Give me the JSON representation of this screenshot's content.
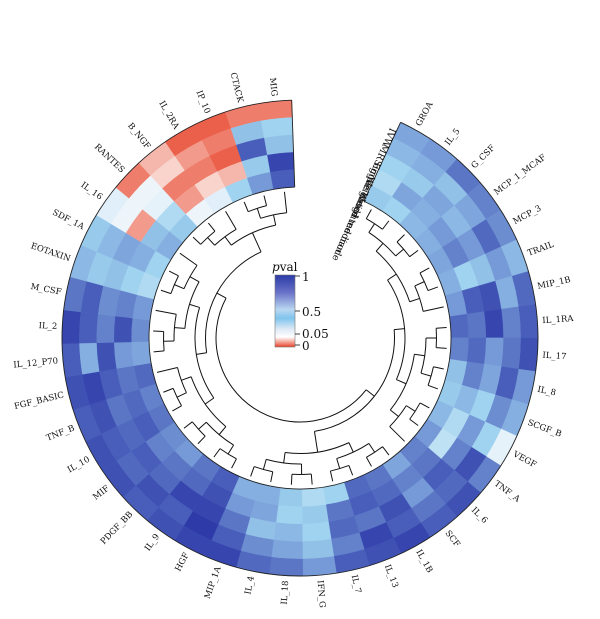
{
  "chart_data": {
    "type": "heatmap",
    "layout": "circular",
    "legend": {
      "title_prefix": "p",
      "title_suffix": "val",
      "ticks": [
        "1",
        "0.5",
        "0.05",
        "0"
      ]
    },
    "methods": [
      "IVW",
      "MR Egger",
      "Simple mode",
      "Weighted median",
      "Weighted mode"
    ],
    "cytokines": [
      "GROA",
      "IL_5",
      "G_CSF",
      "MCP_1_MCAF",
      "MCP_3",
      "TRAIL",
      "MIP_1B",
      "IL_1RA",
      "IL_17",
      "IL_8",
      "SCGF_B",
      "VEGF",
      "TNF_A",
      "IL_6",
      "SCF",
      "IL_1B",
      "IL_13",
      "IL_7",
      "IFN_G",
      "IL_18",
      "IL_4",
      "MIP_1A",
      "HGF",
      "IL_9",
      "PDGF_BB",
      "MIF",
      "IL_10",
      "TNF_B",
      "FGF_BASIC",
      "IL_12_P70",
      "IL_2",
      "M_CSF",
      "EOTAXIN",
      "SDF_1A",
      "IL_16",
      "RANTES",
      "B_NGF",
      "IL_2RA",
      "IP_10",
      "CTACK",
      "MIG"
    ],
    "pvalues": [
      [
        0.55,
        0.45,
        0.3,
        0.25,
        0.35
      ],
      [
        0.6,
        0.5,
        0.35,
        0.55,
        0.3
      ],
      [
        0.75,
        0.4,
        0.55,
        0.5,
        0.45
      ],
      [
        0.7,
        0.55,
        0.45,
        0.6,
        0.5
      ],
      [
        0.65,
        0.8,
        0.6,
        0.7,
        0.55
      ],
      [
        0.45,
        0.6,
        0.4,
        0.3,
        0.5
      ],
      [
        0.8,
        0.5,
        0.9,
        0.85,
        0.6
      ],
      [
        0.85,
        0.7,
        0.95,
        0.75,
        0.8
      ],
      [
        0.9,
        0.75,
        0.6,
        0.8,
        0.7
      ],
      [
        0.6,
        0.85,
        0.55,
        0.7,
        0.4
      ],
      [
        0.5,
        0.65,
        0.3,
        0.45,
        0.35
      ],
      [
        0.08,
        0.3,
        0.6,
        0.25,
        0.45
      ],
      [
        0.7,
        0.9,
        0.7,
        0.2,
        0.6
      ],
      [
        0.9,
        0.8,
        0.85,
        0.75,
        0.7
      ],
      [
        0.85,
        0.75,
        0.6,
        0.7,
        0.55
      ],
      [
        0.95,
        0.85,
        0.9,
        0.8,
        0.75
      ],
      [
        0.9,
        0.95,
        0.75,
        0.85,
        0.8
      ],
      [
        0.85,
        0.7,
        0.8,
        0.75,
        0.3
      ],
      [
        0.6,
        0.4,
        0.3,
        0.35,
        0.25
      ],
      [
        0.75,
        0.55,
        0.45,
        0.3,
        0.35
      ],
      [
        0.8,
        0.65,
        0.4,
        0.55,
        0.5
      ],
      [
        0.95,
        0.85,
        0.75,
        0.6,
        0.5
      ],
      [
        0.95,
        1.0,
        0.95,
        0.9,
        0.85
      ],
      [
        0.9,
        0.85,
        0.95,
        0.8,
        0.75
      ],
      [
        0.85,
        0.9,
        0.8,
        0.75,
        0.6
      ],
      [
        0.9,
        0.8,
        0.85,
        0.7,
        0.65
      ],
      [
        0.9,
        0.85,
        0.8,
        0.85,
        0.75
      ],
      [
        0.85,
        0.9,
        0.75,
        0.8,
        0.7
      ],
      [
        0.9,
        0.95,
        0.85,
        0.75,
        0.8
      ],
      [
        0.85,
        0.5,
        0.9,
        0.6,
        0.55
      ],
      [
        0.95,
        0.85,
        0.7,
        0.9,
        0.65
      ],
      [
        0.75,
        0.85,
        0.65,
        0.7,
        0.6
      ],
      [
        0.45,
        0.35,
        0.4,
        0.3,
        0.25
      ],
      [
        0.35,
        0.45,
        0.55,
        0.5,
        0.3
      ],
      [
        0.1,
        0.06,
        0.03,
        0.4,
        0.5
      ],
      [
        0.02,
        0.06,
        0.08,
        0.25,
        0.35
      ],
      [
        0.04,
        0.05,
        0.02,
        0.03,
        0.06
      ],
      [
        0.01,
        0.03,
        0.02,
        0.05,
        0.1
      ],
      [
        0.01,
        0.02,
        0.01,
        0.04,
        0.3
      ],
      [
        0.02,
        0.4,
        0.85,
        0.35,
        0.6
      ],
      [
        0.02,
        0.3,
        0.4,
        0.95,
        0.85
      ]
    ]
  }
}
